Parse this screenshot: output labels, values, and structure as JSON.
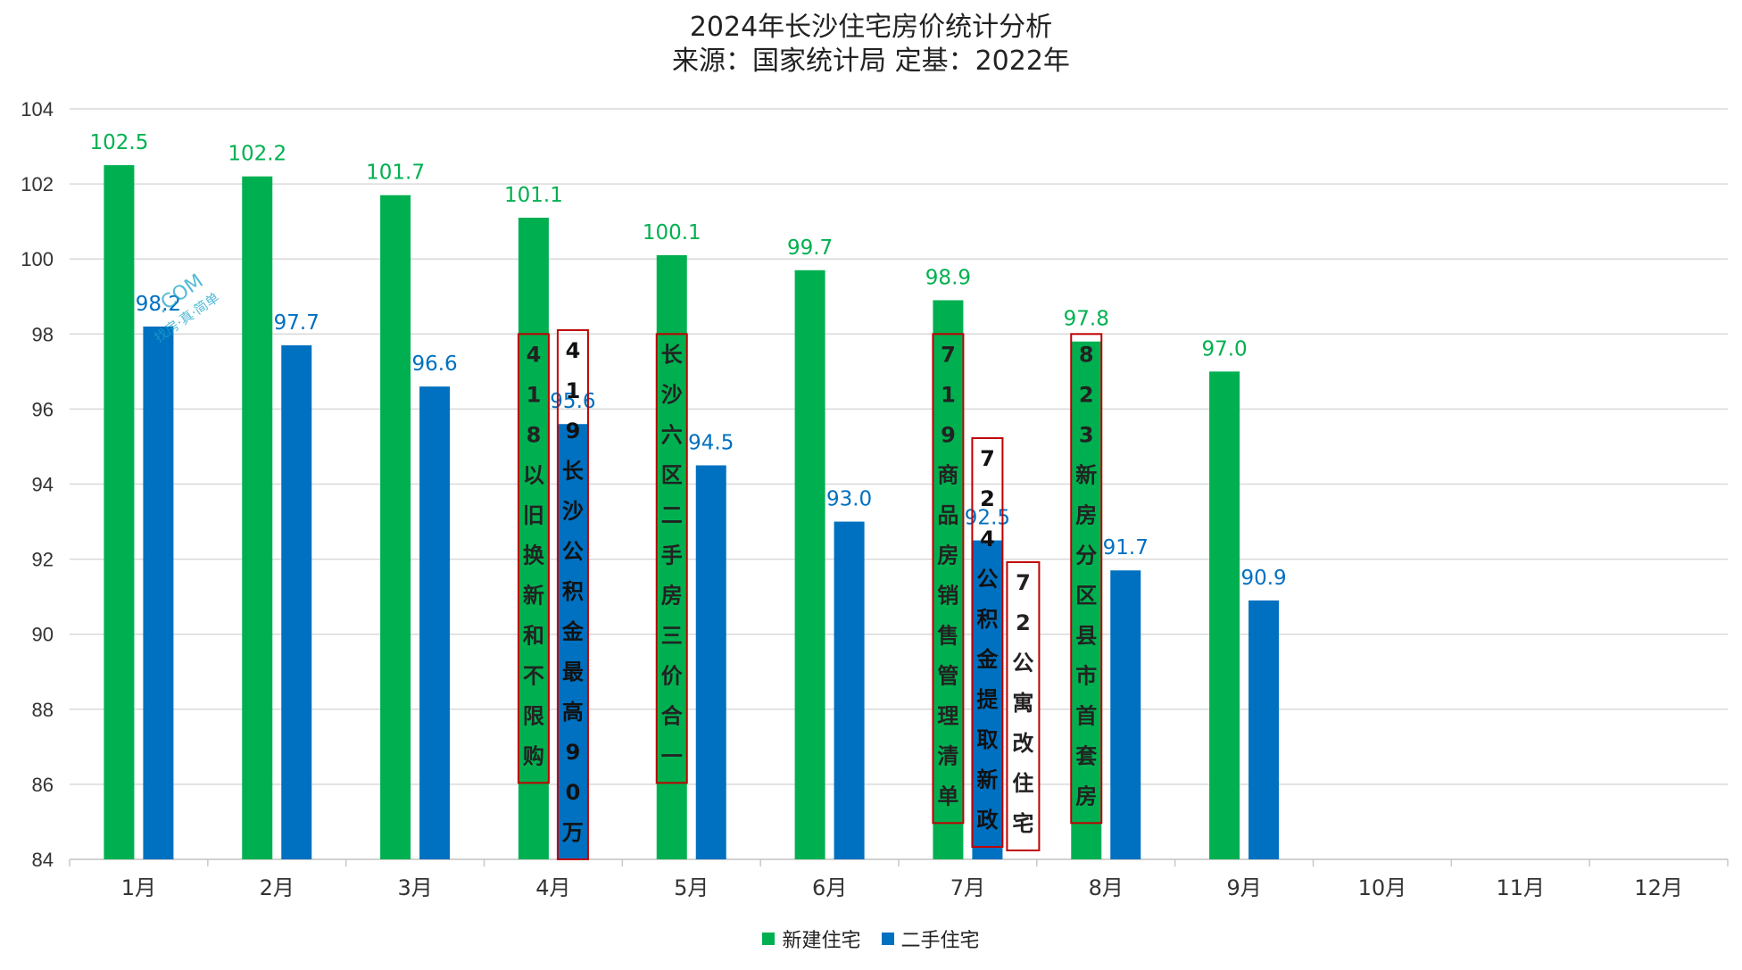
{
  "chart_data": {
    "type": "bar",
    "title": "2024年长沙住宅房价统计分析",
    "subtitle": "来源：国家统计局 定基：2022年",
    "categories": [
      "1月",
      "2月",
      "3月",
      "4月",
      "5月",
      "6月",
      "7月",
      "8月",
      "9月",
      "10月",
      "11月",
      "12月"
    ],
    "series": [
      {
        "name": "新建住宅",
        "color": "#00b050",
        "values": [
          102.5,
          102.2,
          101.7,
          101.1,
          100.1,
          99.7,
          98.9,
          97.8,
          97.0,
          null,
          null,
          null
        ]
      },
      {
        "name": "二手住宅",
        "color": "#0070c0",
        "values": [
          98.2,
          97.7,
          96.6,
          95.6,
          94.5,
          93.0,
          92.5,
          91.7,
          90.9,
          null,
          null,
          null
        ]
      }
    ],
    "ylim": [
      84,
      104
    ],
    "yticks": [
      84,
      86,
      88,
      90,
      92,
      94,
      96,
      98,
      100,
      102,
      104
    ],
    "grid": true,
    "legend_position": "bottom",
    "annotations": [
      {
        "category": "4月",
        "series": "新建住宅",
        "text": "418以旧换新和不限购"
      },
      {
        "category": "4月",
        "series": "二手住宅",
        "text": "419长沙公积金最高90万"
      },
      {
        "category": "5月",
        "series": "新建住宅",
        "text": "长沙六区二手房三价合一"
      },
      {
        "category": "7月",
        "series": "新建住宅",
        "text": "719商品房销售管理清单"
      },
      {
        "category": "7月",
        "series": "二手住宅",
        "text": "724公积金提取新政"
      },
      {
        "category": "7月",
        "series": "extra",
        "text": "72公寓改住宅"
      },
      {
        "category": "8月",
        "series": "新建住宅",
        "text": "823新房分区县市首套房"
      }
    ]
  },
  "watermark": {
    "text": ".COM",
    "tagline": "找房·真·简单",
    "color": "#1aa3c8"
  }
}
